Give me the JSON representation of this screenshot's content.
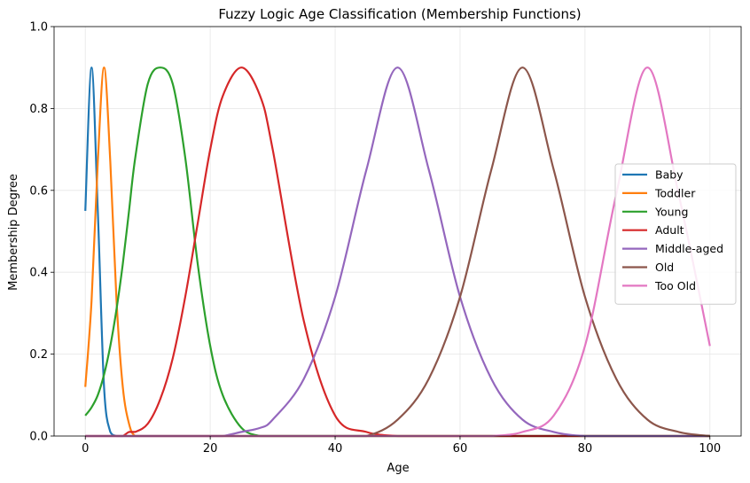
{
  "chart_data": {
    "type": "line",
    "title": "Fuzzy Logic Age Classification (Membership Functions)",
    "xlabel": "Age",
    "ylabel": "Membership Degree",
    "xlim": [
      -5,
      105
    ],
    "ylim": [
      0,
      1.0
    ],
    "x_ticks": [
      "0",
      "20",
      "40",
      "60",
      "80",
      "100"
    ],
    "y_ticks": [
      "0.0",
      "0.2",
      "0.4",
      "0.6",
      "0.8",
      "1.0"
    ],
    "grid": true,
    "legend_position": "center-right",
    "x": [
      0,
      1,
      2,
      3,
      4,
      5,
      6,
      7,
      8,
      10,
      12,
      14,
      16,
      18,
      20,
      22,
      25,
      28,
      30,
      35,
      40,
      45,
      50,
      55,
      60,
      65,
      70,
      75,
      80,
      85,
      90,
      95,
      100
    ],
    "series": [
      {
        "name": "Baby",
        "color": "#1f77b4",
        "values": [
          0.55,
          0.9,
          0.55,
          0.12,
          0.01,
          0.0,
          0.0,
          0.0,
          0.0,
          0.0,
          0.0,
          0.0,
          0.0,
          0.0,
          0.0,
          0.0,
          0.0,
          0.0,
          0.0,
          0.0,
          0.0,
          0.0,
          0.0,
          0.0,
          0.0,
          0.0,
          0.0,
          0.0,
          0.0,
          0.0,
          0.0,
          0.0,
          0.0
        ]
      },
      {
        "name": "Toddler",
        "color": "#ff7f0e",
        "values": [
          0.12,
          0.33,
          0.67,
          0.9,
          0.67,
          0.33,
          0.12,
          0.03,
          0.0,
          0.0,
          0.0,
          0.0,
          0.0,
          0.0,
          0.0,
          0.0,
          0.0,
          0.0,
          0.0,
          0.0,
          0.0,
          0.0,
          0.0,
          0.0,
          0.0,
          0.0,
          0.0,
          0.0,
          0.0,
          0.0,
          0.0,
          0.0,
          0.0
        ]
      },
      {
        "name": "Young",
        "color": "#2ca02c",
        "values": [
          0.05,
          0.07,
          0.1,
          0.15,
          0.22,
          0.31,
          0.42,
          0.55,
          0.68,
          0.86,
          0.9,
          0.86,
          0.68,
          0.42,
          0.22,
          0.1,
          0.02,
          0.0,
          0.0,
          0.0,
          0.0,
          0.0,
          0.0,
          0.0,
          0.0,
          0.0,
          0.0,
          0.0,
          0.0,
          0.0,
          0.0,
          0.0,
          0.0
        ]
      },
      {
        "name": "Adult",
        "color": "#d62728",
        "values": [
          0.0,
          0.0,
          0.0,
          0.0,
          0.0,
          0.0,
          0.0,
          0.01,
          0.01,
          0.03,
          0.09,
          0.19,
          0.34,
          0.52,
          0.7,
          0.83,
          0.9,
          0.83,
          0.7,
          0.28,
          0.05,
          0.01,
          0.0,
          0.0,
          0.0,
          0.0,
          0.0,
          0.0,
          0.0,
          0.0,
          0.0,
          0.0,
          0.0
        ]
      },
      {
        "name": "Middle-aged",
        "color": "#9467bd",
        "values": [
          0.0,
          0.0,
          0.0,
          0.0,
          0.0,
          0.0,
          0.0,
          0.0,
          0.0,
          0.0,
          0.0,
          0.0,
          0.0,
          0.0,
          0.0,
          0.0,
          0.01,
          0.02,
          0.04,
          0.14,
          0.34,
          0.65,
          0.9,
          0.65,
          0.34,
          0.14,
          0.04,
          0.01,
          0.0,
          0.0,
          0.0,
          0.0,
          0.0
        ]
      },
      {
        "name": "Old",
        "color": "#8c564b",
        "values": [
          0.0,
          0.0,
          0.0,
          0.0,
          0.0,
          0.0,
          0.0,
          0.0,
          0.0,
          0.0,
          0.0,
          0.0,
          0.0,
          0.0,
          0.0,
          0.0,
          0.0,
          0.0,
          0.0,
          0.0,
          0.0,
          0.0,
          0.04,
          0.14,
          0.34,
          0.65,
          0.9,
          0.65,
          0.34,
          0.14,
          0.04,
          0.01,
          0.0
        ]
      },
      {
        "name": "Too Old",
        "color": "#e377c2",
        "values": [
          0.0,
          0.0,
          0.0,
          0.0,
          0.0,
          0.0,
          0.0,
          0.0,
          0.0,
          0.0,
          0.0,
          0.0,
          0.0,
          0.0,
          0.0,
          0.0,
          0.0,
          0.0,
          0.0,
          0.0,
          0.0,
          0.0,
          0.0,
          0.0,
          0.0,
          0.0,
          0.01,
          0.05,
          0.22,
          0.59,
          0.9,
          0.59,
          0.22
        ]
      }
    ]
  }
}
